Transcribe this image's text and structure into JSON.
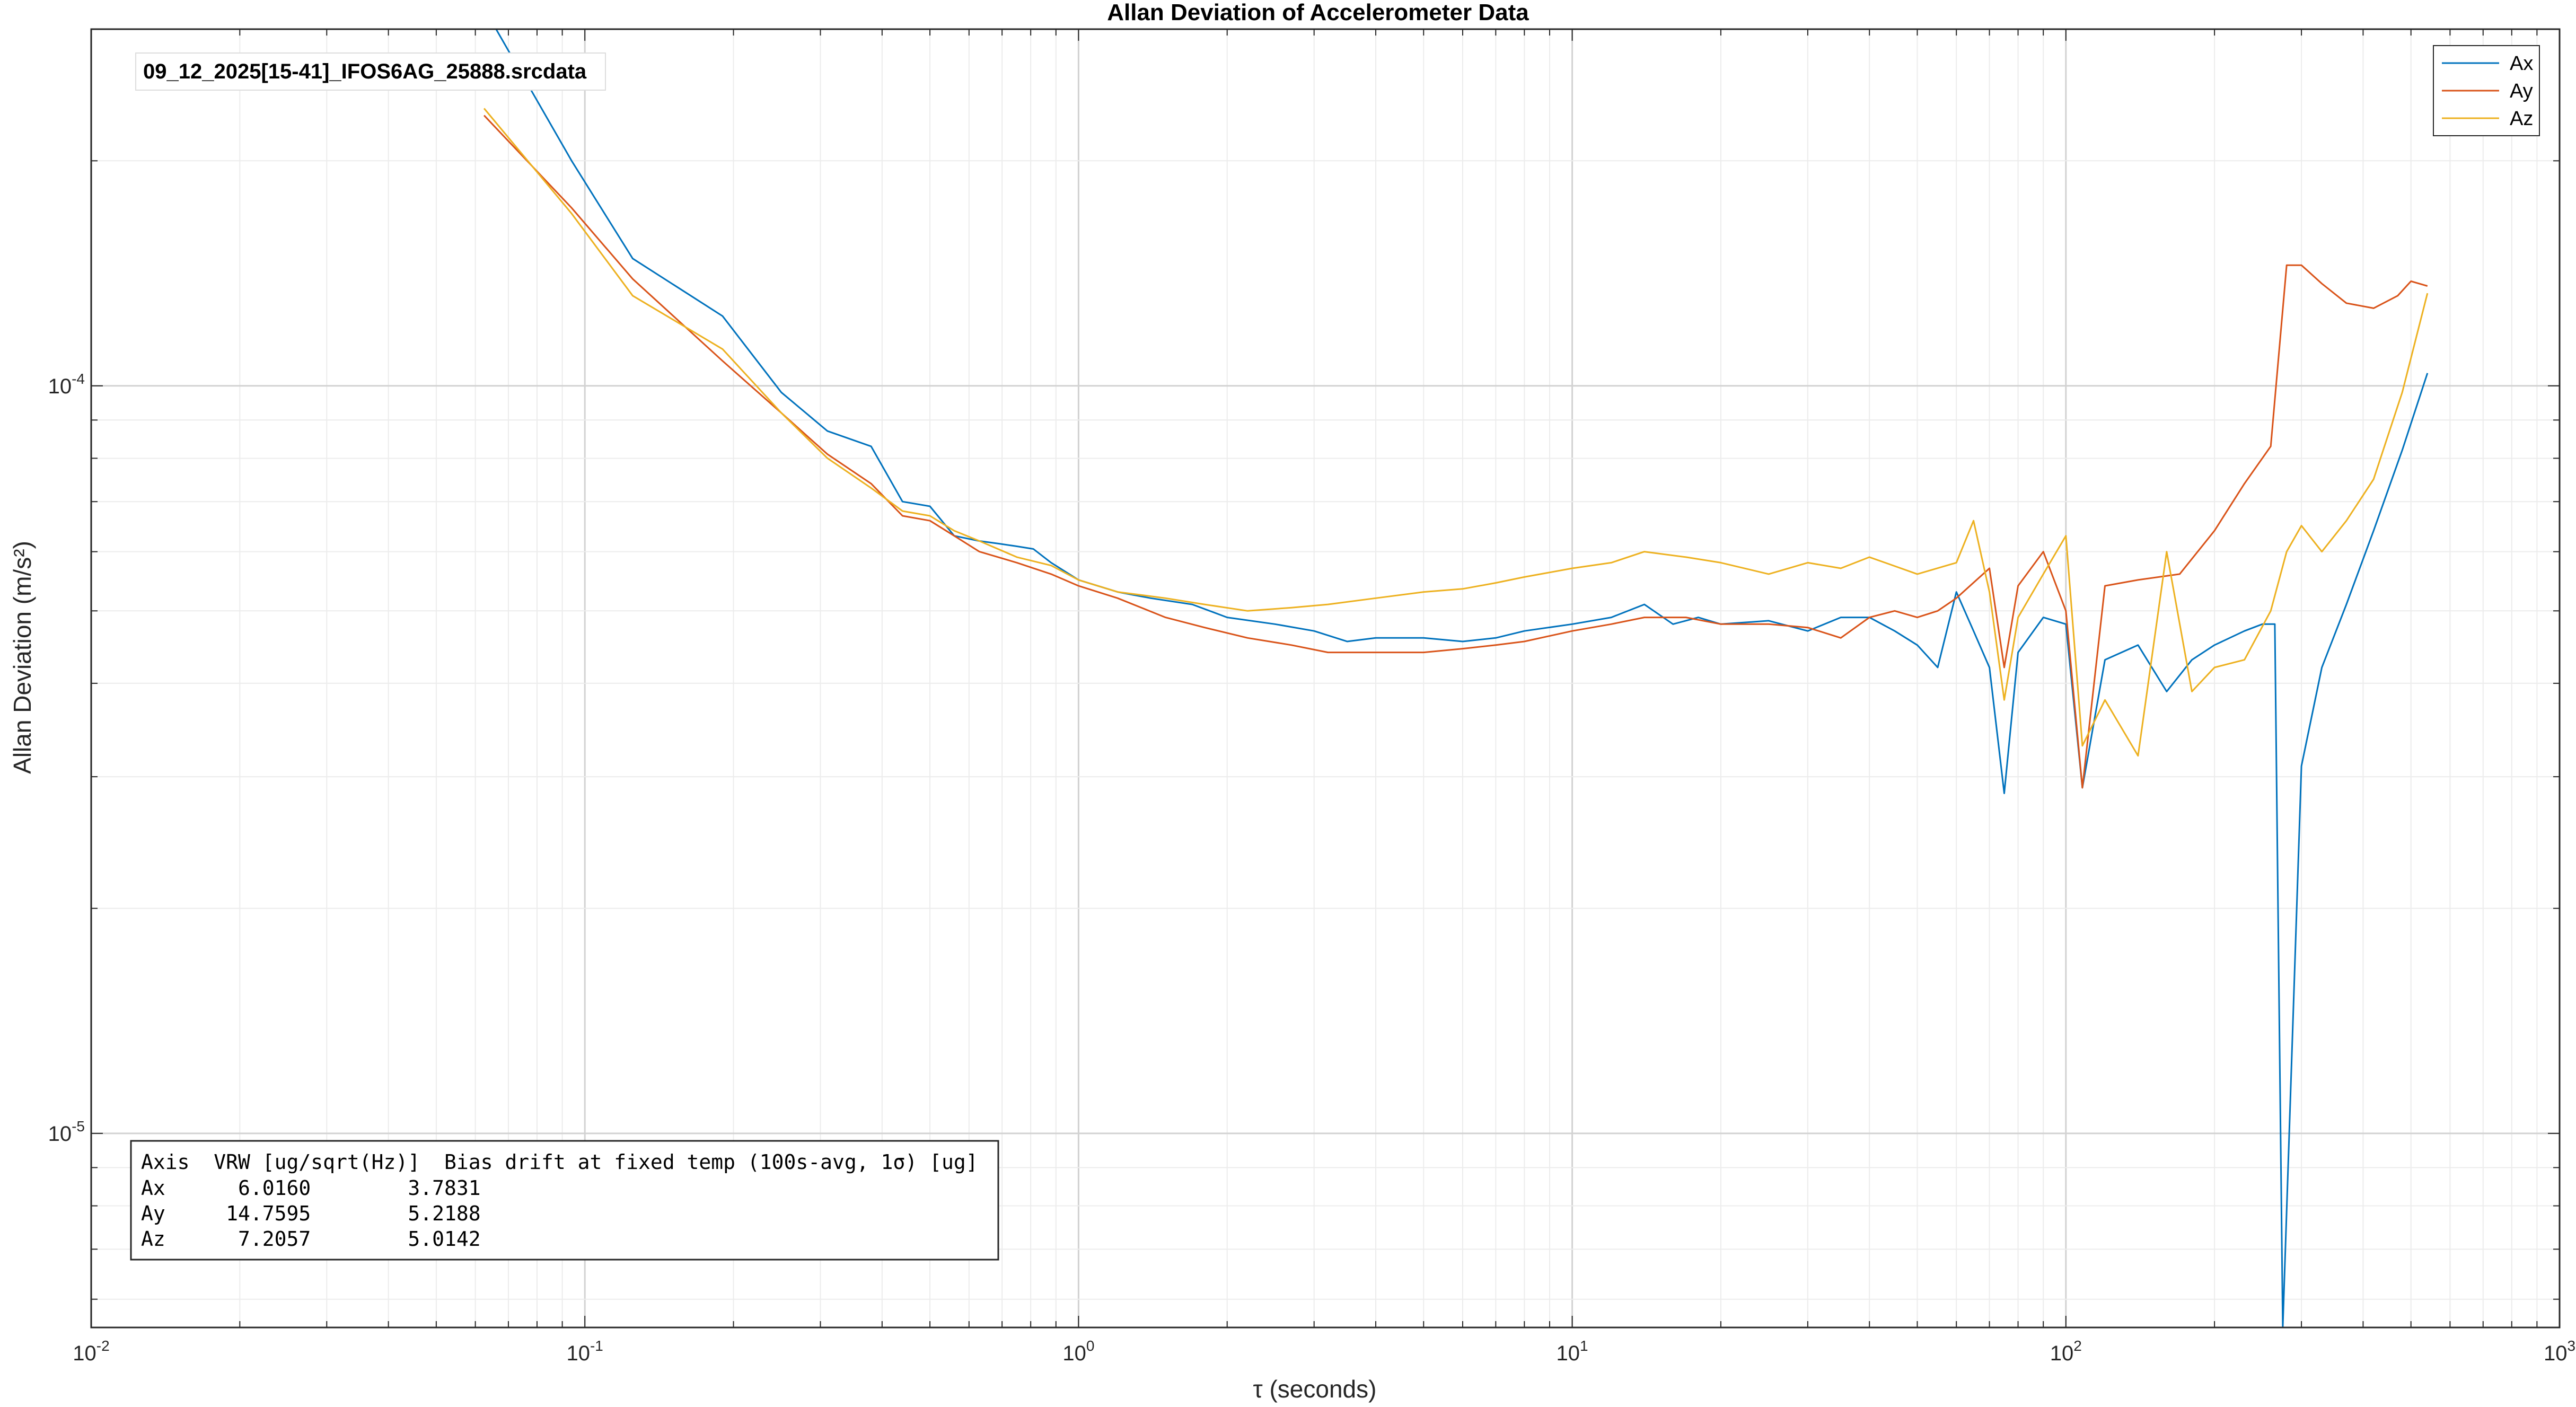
{
  "chart_data": {
    "type": "line",
    "title": "Allan Deviation of Accelerometer Data",
    "xlabel": "τ (seconds)",
    "ylabel": "Allan Deviation (m/s²)",
    "xscale": "log",
    "yscale": "log",
    "xlim": [
      0.01,
      1000
    ],
    "ylim": [
      5.5e-06,
      0.0003
    ],
    "xticks": [
      {
        "base": "10",
        "exp": "-2"
      },
      {
        "base": "10",
        "exp": "-1"
      },
      {
        "base": "10",
        "exp": "0"
      },
      {
        "base": "10",
        "exp": "1"
      },
      {
        "base": "10",
        "exp": "2"
      },
      {
        "base": "10",
        "exp": "3"
      }
    ],
    "yticks": [
      {
        "base": "10",
        "exp": "-5"
      },
      {
        "base": "10",
        "exp": "-4"
      }
    ],
    "grid": true,
    "legend_position": "top-right",
    "file_label": "09_12_2025[15-41]_IFOS6AG_25888.srcdata",
    "stats_table": [
      "Axis  VRW [ug/sqrt(Hz)]  Bias drift at fixed temp (100s-avg, 1σ) [ug]",
      "Ax      6.0160        3.7831",
      "Ay     14.7595        5.2188",
      "Az      7.2057        5.0142"
    ],
    "series": [
      {
        "name": "Ax",
        "color": "#0072BD",
        "points": [
          [
            0.0625,
            0.00032
          ],
          [
            0.094,
            0.0002
          ],
          [
            0.125,
            0.000148
          ],
          [
            0.19,
            0.000124
          ],
          [
            0.25,
            9.8e-05
          ],
          [
            0.31,
            8.7e-05
          ],
          [
            0.38,
            8.3e-05
          ],
          [
            0.44,
            7e-05
          ],
          [
            0.5,
            6.9e-05
          ],
          [
            0.56,
            6.3e-05
          ],
          [
            0.63,
            6.2e-05
          ],
          [
            0.69,
            6.15e-05
          ],
          [
            0.75,
            6.1e-05
          ],
          [
            0.81,
            6.05e-05
          ],
          [
            0.88,
            5.8e-05
          ],
          [
            1.0,
            5.5e-05
          ],
          [
            1.2,
            5.3e-05
          ],
          [
            1.4,
            5.2e-05
          ],
          [
            1.7,
            5.1e-05
          ],
          [
            2.0,
            4.9e-05
          ],
          [
            2.5,
            4.8e-05
          ],
          [
            3.0,
            4.7e-05
          ],
          [
            3.5,
            4.55e-05
          ],
          [
            4.0,
            4.6e-05
          ],
          [
            5.0,
            4.6e-05
          ],
          [
            6.0,
            4.55e-05
          ],
          [
            7.0,
            4.6e-05
          ],
          [
            8.0,
            4.7e-05
          ],
          [
            10.0,
            4.8e-05
          ],
          [
            12.0,
            4.9e-05
          ],
          [
            14.0,
            5.1e-05
          ],
          [
            16.0,
            4.8e-05
          ],
          [
            18.0,
            4.9e-05
          ],
          [
            20.0,
            4.8e-05
          ],
          [
            25.0,
            4.85e-05
          ],
          [
            30.0,
            4.7e-05
          ],
          [
            35.0,
            4.9e-05
          ],
          [
            40.0,
            4.9e-05
          ],
          [
            45.0,
            4.7e-05
          ],
          [
            50.0,
            4.5e-05
          ],
          [
            55.0,
            4.2e-05
          ],
          [
            60.0,
            5.3e-05
          ],
          [
            65.0,
            4.7e-05
          ],
          [
            70.0,
            4.2e-05
          ],
          [
            75.0,
            2.85e-05
          ],
          [
            80.0,
            4.4e-05
          ],
          [
            90.0,
            4.9e-05
          ],
          [
            100.0,
            4.8e-05
          ],
          [
            108.0,
            2.9e-05
          ],
          [
            120.0,
            4.3e-05
          ],
          [
            140.0,
            4.5e-05
          ],
          [
            160.0,
            3.9e-05
          ],
          [
            180.0,
            4.3e-05
          ],
          [
            200.0,
            4.5e-05
          ],
          [
            230.0,
            4.7e-05
          ],
          [
            250.0,
            4.8e-05
          ],
          [
            265.0,
            4.8e-05
          ],
          [
            275.0,
            5.5e-06
          ],
          [
            300.0,
            3.1e-05
          ],
          [
            330.0,
            4.2e-05
          ],
          [
            370.0,
            5.1e-05
          ],
          [
            420.0,
            6.4e-05
          ],
          [
            480.0,
            8.2e-05
          ],
          [
            540.0,
            0.000104
          ]
        ]
      },
      {
        "name": "Ay",
        "color": "#D95319",
        "points": [
          [
            0.0625,
            0.00023
          ],
          [
            0.094,
            0.000173
          ],
          [
            0.125,
            0.000139
          ],
          [
            0.19,
            0.000108
          ],
          [
            0.25,
            9.2e-05
          ],
          [
            0.31,
            8.1e-05
          ],
          [
            0.38,
            7.4e-05
          ],
          [
            0.44,
            6.7e-05
          ],
          [
            0.5,
            6.6e-05
          ],
          [
            0.56,
            6.3e-05
          ],
          [
            0.63,
            6e-05
          ],
          [
            0.75,
            5.8e-05
          ],
          [
            0.88,
            5.6e-05
          ],
          [
            1.0,
            5.4e-05
          ],
          [
            1.2,
            5.2e-05
          ],
          [
            1.5,
            4.9e-05
          ],
          [
            1.8,
            4.75e-05
          ],
          [
            2.2,
            4.6e-05
          ],
          [
            2.7,
            4.5e-05
          ],
          [
            3.2,
            4.4e-05
          ],
          [
            4.0,
            4.4e-05
          ],
          [
            5.0,
            4.4e-05
          ],
          [
            6.0,
            4.45e-05
          ],
          [
            7.0,
            4.5e-05
          ],
          [
            8.0,
            4.55e-05
          ],
          [
            10.0,
            4.7e-05
          ],
          [
            12.0,
            4.8e-05
          ],
          [
            14.0,
            4.9e-05
          ],
          [
            17.0,
            4.9e-05
          ],
          [
            20.0,
            4.8e-05
          ],
          [
            25.0,
            4.8e-05
          ],
          [
            30.0,
            4.75e-05
          ],
          [
            35.0,
            4.6e-05
          ],
          [
            40.0,
            4.9e-05
          ],
          [
            45.0,
            5e-05
          ],
          [
            50.0,
            4.9e-05
          ],
          [
            55.0,
            5e-05
          ],
          [
            60.0,
            5.2e-05
          ],
          [
            70.0,
            5.7e-05
          ],
          [
            75.0,
            4.2e-05
          ],
          [
            80.0,
            5.4e-05
          ],
          [
            90.0,
            6e-05
          ],
          [
            100.0,
            5e-05
          ],
          [
            108.0,
            2.9e-05
          ],
          [
            120.0,
            5.4e-05
          ],
          [
            140.0,
            5.5e-05
          ],
          [
            170.0,
            5.6e-05
          ],
          [
            200.0,
            6.4e-05
          ],
          [
            230.0,
            7.4e-05
          ],
          [
            260.0,
            8.3e-05
          ],
          [
            280.0,
            0.000145
          ],
          [
            300.0,
            0.000145
          ],
          [
            330.0,
            0.000137
          ],
          [
            370.0,
            0.000129
          ],
          [
            420.0,
            0.000127
          ],
          [
            470.0,
            0.000132
          ],
          [
            500.0,
            0.000138
          ],
          [
            540.0,
            0.000136
          ]
        ]
      },
      {
        "name": "Az",
        "color": "#EDB120",
        "points": [
          [
            0.0625,
            0.000235
          ],
          [
            0.094,
            0.00017
          ],
          [
            0.125,
            0.000132
          ],
          [
            0.19,
            0.000112
          ],
          [
            0.25,
            9.2e-05
          ],
          [
            0.31,
            8e-05
          ],
          [
            0.38,
            7.3e-05
          ],
          [
            0.44,
            6.8e-05
          ],
          [
            0.5,
            6.7e-05
          ],
          [
            0.56,
            6.4e-05
          ],
          [
            0.63,
            6.2e-05
          ],
          [
            0.75,
            5.9e-05
          ],
          [
            0.88,
            5.75e-05
          ],
          [
            1.0,
            5.5e-05
          ],
          [
            1.2,
            5.3e-05
          ],
          [
            1.5,
            5.2e-05
          ],
          [
            1.8,
            5.1e-05
          ],
          [
            2.2,
            5e-05
          ],
          [
            2.7,
            5.05e-05
          ],
          [
            3.2,
            5.1e-05
          ],
          [
            4.0,
            5.2e-05
          ],
          [
            5.0,
            5.3e-05
          ],
          [
            6.0,
            5.35e-05
          ],
          [
            7.0,
            5.45e-05
          ],
          [
            8.0,
            5.55e-05
          ],
          [
            10.0,
            5.7e-05
          ],
          [
            12.0,
            5.8e-05
          ],
          [
            14.0,
            6e-05
          ],
          [
            17.0,
            5.9e-05
          ],
          [
            20.0,
            5.8e-05
          ],
          [
            25.0,
            5.6e-05
          ],
          [
            30.0,
            5.8e-05
          ],
          [
            35.0,
            5.7e-05
          ],
          [
            40.0,
            5.9e-05
          ],
          [
            50.0,
            5.6e-05
          ],
          [
            60.0,
            5.8e-05
          ],
          [
            65.0,
            6.6e-05
          ],
          [
            70.0,
            5.3e-05
          ],
          [
            75.0,
            3.8e-05
          ],
          [
            80.0,
            4.9e-05
          ],
          [
            90.0,
            5.6e-05
          ],
          [
            100.0,
            6.3e-05
          ],
          [
            108.0,
            3.3e-05
          ],
          [
            120.0,
            3.8e-05
          ],
          [
            140.0,
            3.2e-05
          ],
          [
            160.0,
            6e-05
          ],
          [
            180.0,
            3.9e-05
          ],
          [
            200.0,
            4.2e-05
          ],
          [
            230.0,
            4.3e-05
          ],
          [
            260.0,
            5e-05
          ],
          [
            280.0,
            6e-05
          ],
          [
            300.0,
            6.5e-05
          ],
          [
            330.0,
            6e-05
          ],
          [
            370.0,
            6.6e-05
          ],
          [
            420.0,
            7.5e-05
          ],
          [
            480.0,
            9.8e-05
          ],
          [
            540.0,
            0.000133
          ]
        ]
      }
    ]
  }
}
